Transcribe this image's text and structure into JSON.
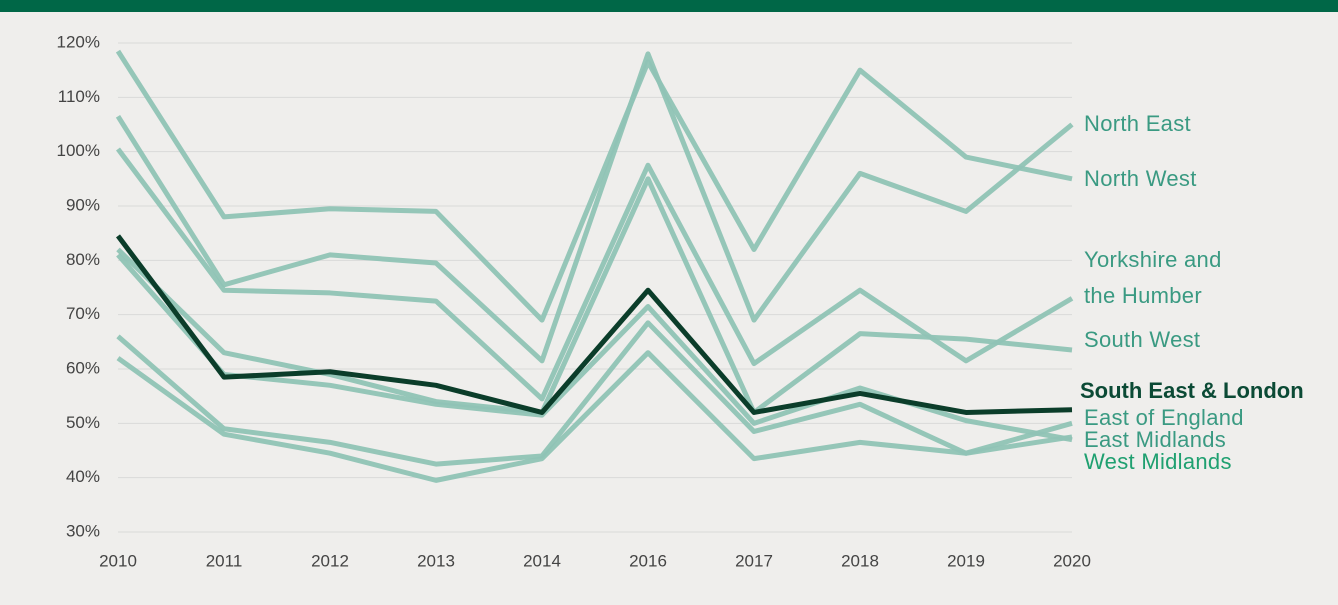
{
  "chart_data": {
    "type": "line",
    "categories": [
      "2010",
      "2011",
      "2012",
      "2013",
      "2014",
      "2016",
      "2017",
      "2018",
      "2019",
      "2020"
    ],
    "ylim": [
      30,
      120
    ],
    "yticks": [
      {
        "value": 30,
        "label": "30%"
      },
      {
        "value": 40,
        "label": "40%"
      },
      {
        "value": 50,
        "label": "50%"
      },
      {
        "value": 60,
        "label": "60%"
      },
      {
        "value": 70,
        "label": "70%"
      },
      {
        "value": 80,
        "label": "80%"
      },
      {
        "value": 90,
        "label": "90%"
      },
      {
        "value": 100,
        "label": "100%"
      },
      {
        "value": 110,
        "label": "110%"
      },
      {
        "value": 120,
        "label": "120%"
      }
    ],
    "grid": true,
    "series": [
      {
        "name": "North East",
        "color": "#8fc3b5",
        "label_color": "#3a9a82",
        "values": [
          106.5,
          75.5,
          81,
          79.5,
          61.5,
          118,
          69,
          96,
          89,
          105
        ]
      },
      {
        "name": "North West",
        "color": "#8fc3b5",
        "label_color": "#3a9a82",
        "values": [
          118.5,
          88,
          89.5,
          89,
          69,
          116.5,
          82,
          115,
          99,
          95
        ]
      },
      {
        "name": "Yorkshire and the Humber",
        "color": "#8fc3b5",
        "label_color": "#3a9a82",
        "values": [
          100.5,
          74.5,
          74,
          72.5,
          54.5,
          97.5,
          61,
          74.5,
          61.5,
          73
        ]
      },
      {
        "name": "South West",
        "color": "#8fc3b5",
        "label_color": "#3a9a82",
        "values": [
          82,
          63,
          59,
          54,
          52,
          95,
          52,
          66.5,
          65.5,
          63.5
        ]
      },
      {
        "name": "South East & London",
        "color": "#0b3d2a",
        "label_color": "#0b4a35",
        "bold": true,
        "values": [
          84.5,
          58.5,
          59.5,
          57,
          52,
          74.5,
          52,
          55.5,
          52,
          52.5
        ]
      },
      {
        "name": "East of England",
        "color": "#8fc3b5",
        "label_color": "#3a9a82",
        "values": [
          81,
          59,
          57,
          53.5,
          51.5,
          71.5,
          50,
          56.5,
          50.5,
          47
        ]
      },
      {
        "name": "East Midlands",
        "color": "#8fc3b5",
        "label_color": "#3a9a82",
        "values": [
          66,
          49,
          46.5,
          42.5,
          44,
          68.5,
          48.5,
          53.5,
          44.5,
          50
        ]
      },
      {
        "name": "West Midlands",
        "color": "#8fc3b5",
        "label_color": "#1fa070",
        "values": [
          62,
          48,
          44.5,
          39.5,
          43.5,
          63,
          43.5,
          46.5,
          44.5,
          47.5
        ]
      }
    ]
  }
}
